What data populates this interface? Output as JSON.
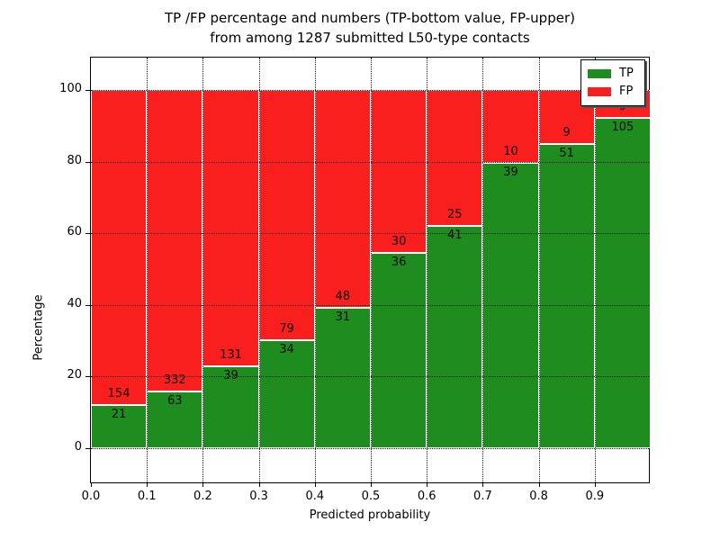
{
  "title": {
    "line1": "TP /FP percentage and numbers (TP-bottom value, FP-upper)",
    "line2": "from among 1287 submitted L50-type contacts"
  },
  "chart_data": {
    "type": "bar",
    "stacked": true,
    "normalized_to_percent": true,
    "total_contacts": 1287,
    "bin_start": [
      0.0,
      0.1,
      0.2,
      0.3,
      0.4,
      0.5,
      0.6,
      0.7,
      0.8,
      0.9
    ],
    "bin_width": 0.1,
    "series": [
      {
        "name": "TP",
        "color": "#1e8c1e",
        "counts": [
          21,
          63,
          39,
          34,
          31,
          36,
          41,
          39,
          51,
          105
        ]
      },
      {
        "name": "FP",
        "color": "#f91f1f",
        "counts": [
          154,
          332,
          131,
          79,
          48,
          30,
          25,
          10,
          9,
          9
        ]
      }
    ],
    "tp_percent_approx": [
      12.0,
      15.9,
      22.9,
      30.1,
      39.2,
      54.5,
      62.1,
      79.6,
      85.0,
      92.1
    ],
    "xlabel": "Predicted probability",
    "ylabel": "Percentage",
    "xticks": [
      "0.0",
      "0.1",
      "0.2",
      "0.3",
      "0.4",
      "0.5",
      "0.6",
      "0.7",
      "0.8",
      "0.9"
    ],
    "yticks": [
      0,
      20,
      40,
      60,
      80,
      100
    ],
    "xlim": [
      0.0,
      1.0
    ],
    "ylim": [
      -10,
      110
    ],
    "grid": "dotted black, both axes",
    "bar_edge_color": "#ffffff",
    "legend": {
      "position": "upper right",
      "entries": [
        {
          "label": "TP",
          "color": "#1e8c1e"
        },
        {
          "label": "FP",
          "color": "#f91f1f"
        }
      ]
    }
  }
}
